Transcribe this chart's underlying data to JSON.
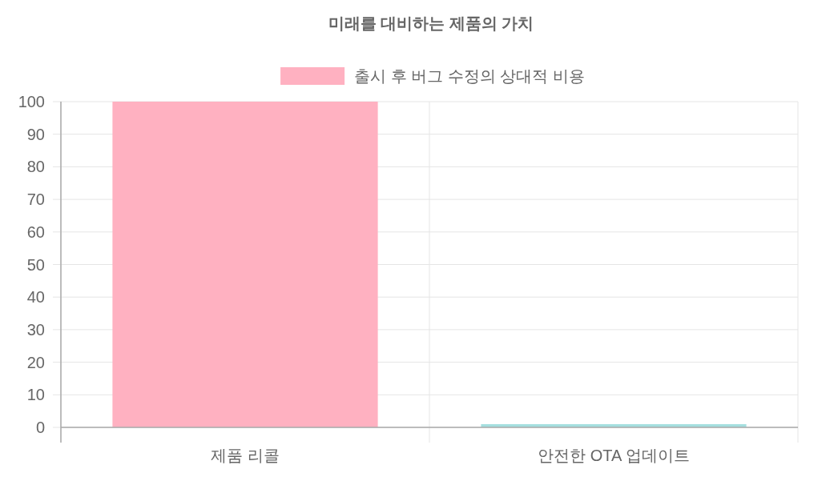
{
  "chart_data": {
    "type": "bar",
    "title": "미래를 대비하는 제품의 가치",
    "categories": [
      "제품 리콜",
      "안전한 OTA 업데이트"
    ],
    "series": [
      {
        "name": "출시 후 버그 수정의 상대적 비용",
        "colors": [
          "#ffb1c1",
          "#a5dfdf"
        ],
        "values": [
          100,
          1
        ]
      }
    ],
    "ylim": [
      0,
      100
    ],
    "yticks": [
      0,
      10,
      20,
      30,
      40,
      50,
      60,
      70,
      80,
      90,
      100
    ],
    "grid": true,
    "legend": "top"
  }
}
